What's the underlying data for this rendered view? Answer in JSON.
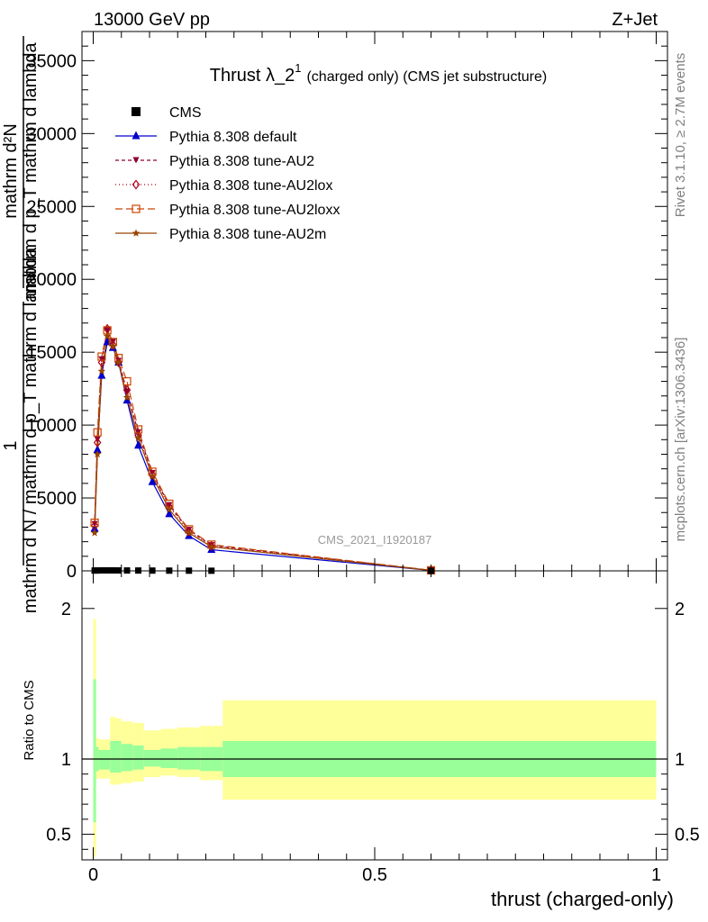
{
  "header": {
    "left": "13000 GeV pp",
    "right": "Z+Jet"
  },
  "side_texts": {
    "rivet": "Rivet 3.1.10, ≥ 2.7M events",
    "mcplots": "mcplots.cern.ch [arXiv:1306.3436]"
  },
  "watermark": "CMS_2021_I1920187",
  "colors": {
    "cms": "#000000",
    "default": "#0000cc",
    "au2": "#8b0033",
    "au2lox": "#b0001a",
    "au2loxx": "#cc4400",
    "au2m": "#994400",
    "band_inner": "#99ff99",
    "band_outer": "#ffff99"
  },
  "chart_data": [
    {
      "type": "line",
      "title": "Thrust λ_2",
      "title_sup": "1",
      "title_suffix": "(charged only) (CMS jet substructure)",
      "ylabel_numerator": "1",
      "ylabel_frac_num": "mathrm d²N",
      "ylabel_frac_den": "mathrm d p_T mathrm d lambda",
      "ylabel_denominator": "mathrm d N / mathrm d p_T mathrm d lambda",
      "xlabel": "thrust (charged-only)",
      "xlim": [
        -0.02,
        1.02
      ],
      "ylim": [
        0,
        37000
      ],
      "yticks": [
        0,
        5000,
        10000,
        15000,
        20000,
        25000,
        30000,
        35000
      ],
      "ytick_labels": [
        "0",
        "5000",
        "10000",
        "15000",
        "20000",
        "25000",
        "30000",
        "35000"
      ],
      "x": [
        0.0025,
        0.0075,
        0.015,
        0.025,
        0.035,
        0.045,
        0.06,
        0.08,
        0.105,
        0.135,
        0.17,
        0.21,
        0.6
      ],
      "series": [
        {
          "name": "CMS",
          "key": "cms",
          "marker": "square",
          "dash": "",
          "values": [
            20,
            25,
            30,
            30,
            30,
            28,
            25,
            22,
            18,
            15,
            12,
            8,
            1
          ]
        },
        {
          "name": "Pythia 8.308 default",
          "key": "default",
          "marker": "triangle-up",
          "dash": "",
          "values": [
            2900,
            8300,
            13400,
            15700,
            15300,
            14300,
            11700,
            8600,
            6100,
            3900,
            2400,
            1450,
            30
          ]
        },
        {
          "name": "Pythia 8.308 tune-AU2",
          "key": "au2",
          "marker": "triangle-down",
          "dash": "4,3",
          "values": [
            3200,
            9000,
            14500,
            16500,
            15700,
            14400,
            12300,
            9500,
            6700,
            4500,
            2800,
            1750,
            40
          ]
        },
        {
          "name": "Pythia 8.308 tune-AU2lox",
          "key": "au2lox",
          "marker": "diamond",
          "dash": "1,3",
          "values": [
            3100,
            8800,
            14300,
            16600,
            15500,
            14300,
            12400,
            9300,
            6600,
            4400,
            2700,
            1700,
            40
          ]
        },
        {
          "name": "Pythia 8.308 tune-AU2loxx",
          "key": "au2loxx",
          "marker": "square-open",
          "dash": "8,4",
          "values": [
            3300,
            9500,
            14700,
            16500,
            15700,
            14600,
            13000,
            9700,
            6800,
            4600,
            2850,
            1800,
            40
          ]
        },
        {
          "name": "Pythia 8.308 tune-AU2m",
          "key": "au2m",
          "marker": "star",
          "dash": "",
          "values": [
            2600,
            8000,
            13700,
            16100,
            15400,
            14300,
            11900,
            9100,
            6500,
            4200,
            2600,
            1650,
            30
          ]
        }
      ]
    },
    {
      "type": "area",
      "ylabel": "Ratio to CMS",
      "xlim": [
        -0.02,
        1.02
      ],
      "ylim": [
        0.33,
        2.25
      ],
      "xticks": [
        0,
        0.5,
        1
      ],
      "xtick_labels": [
        "0",
        "0.5",
        "1"
      ],
      "yticks": [
        0.5,
        1,
        2
      ],
      "ytick_labels": [
        "0.5",
        "1",
        "2"
      ],
      "reference": 1,
      "bands": {
        "edges": [
          0,
          0.005,
          0.01,
          0.02,
          0.03,
          0.04,
          0.05,
          0.07,
          0.09,
          0.12,
          0.15,
          0.19,
          0.23,
          1.0
        ],
        "inner_lo": [
          0.58,
          0.92,
          0.93,
          0.93,
          0.91,
          0.91,
          0.92,
          0.93,
          0.95,
          0.94,
          0.93,
          0.92,
          0.88
        ],
        "inner_hi": [
          1.53,
          1.08,
          1.06,
          1.06,
          1.12,
          1.12,
          1.1,
          1.09,
          1.06,
          1.07,
          1.08,
          1.08,
          1.12
        ],
        "outer_lo": [
          0.35,
          0.87,
          0.87,
          0.87,
          0.83,
          0.83,
          0.84,
          0.85,
          0.88,
          0.89,
          0.88,
          0.86,
          0.73
        ],
        "outer_hi": [
          1.93,
          1.14,
          1.13,
          1.13,
          1.28,
          1.27,
          1.25,
          1.24,
          1.19,
          1.2,
          1.21,
          1.22,
          1.39
        ]
      }
    }
  ]
}
